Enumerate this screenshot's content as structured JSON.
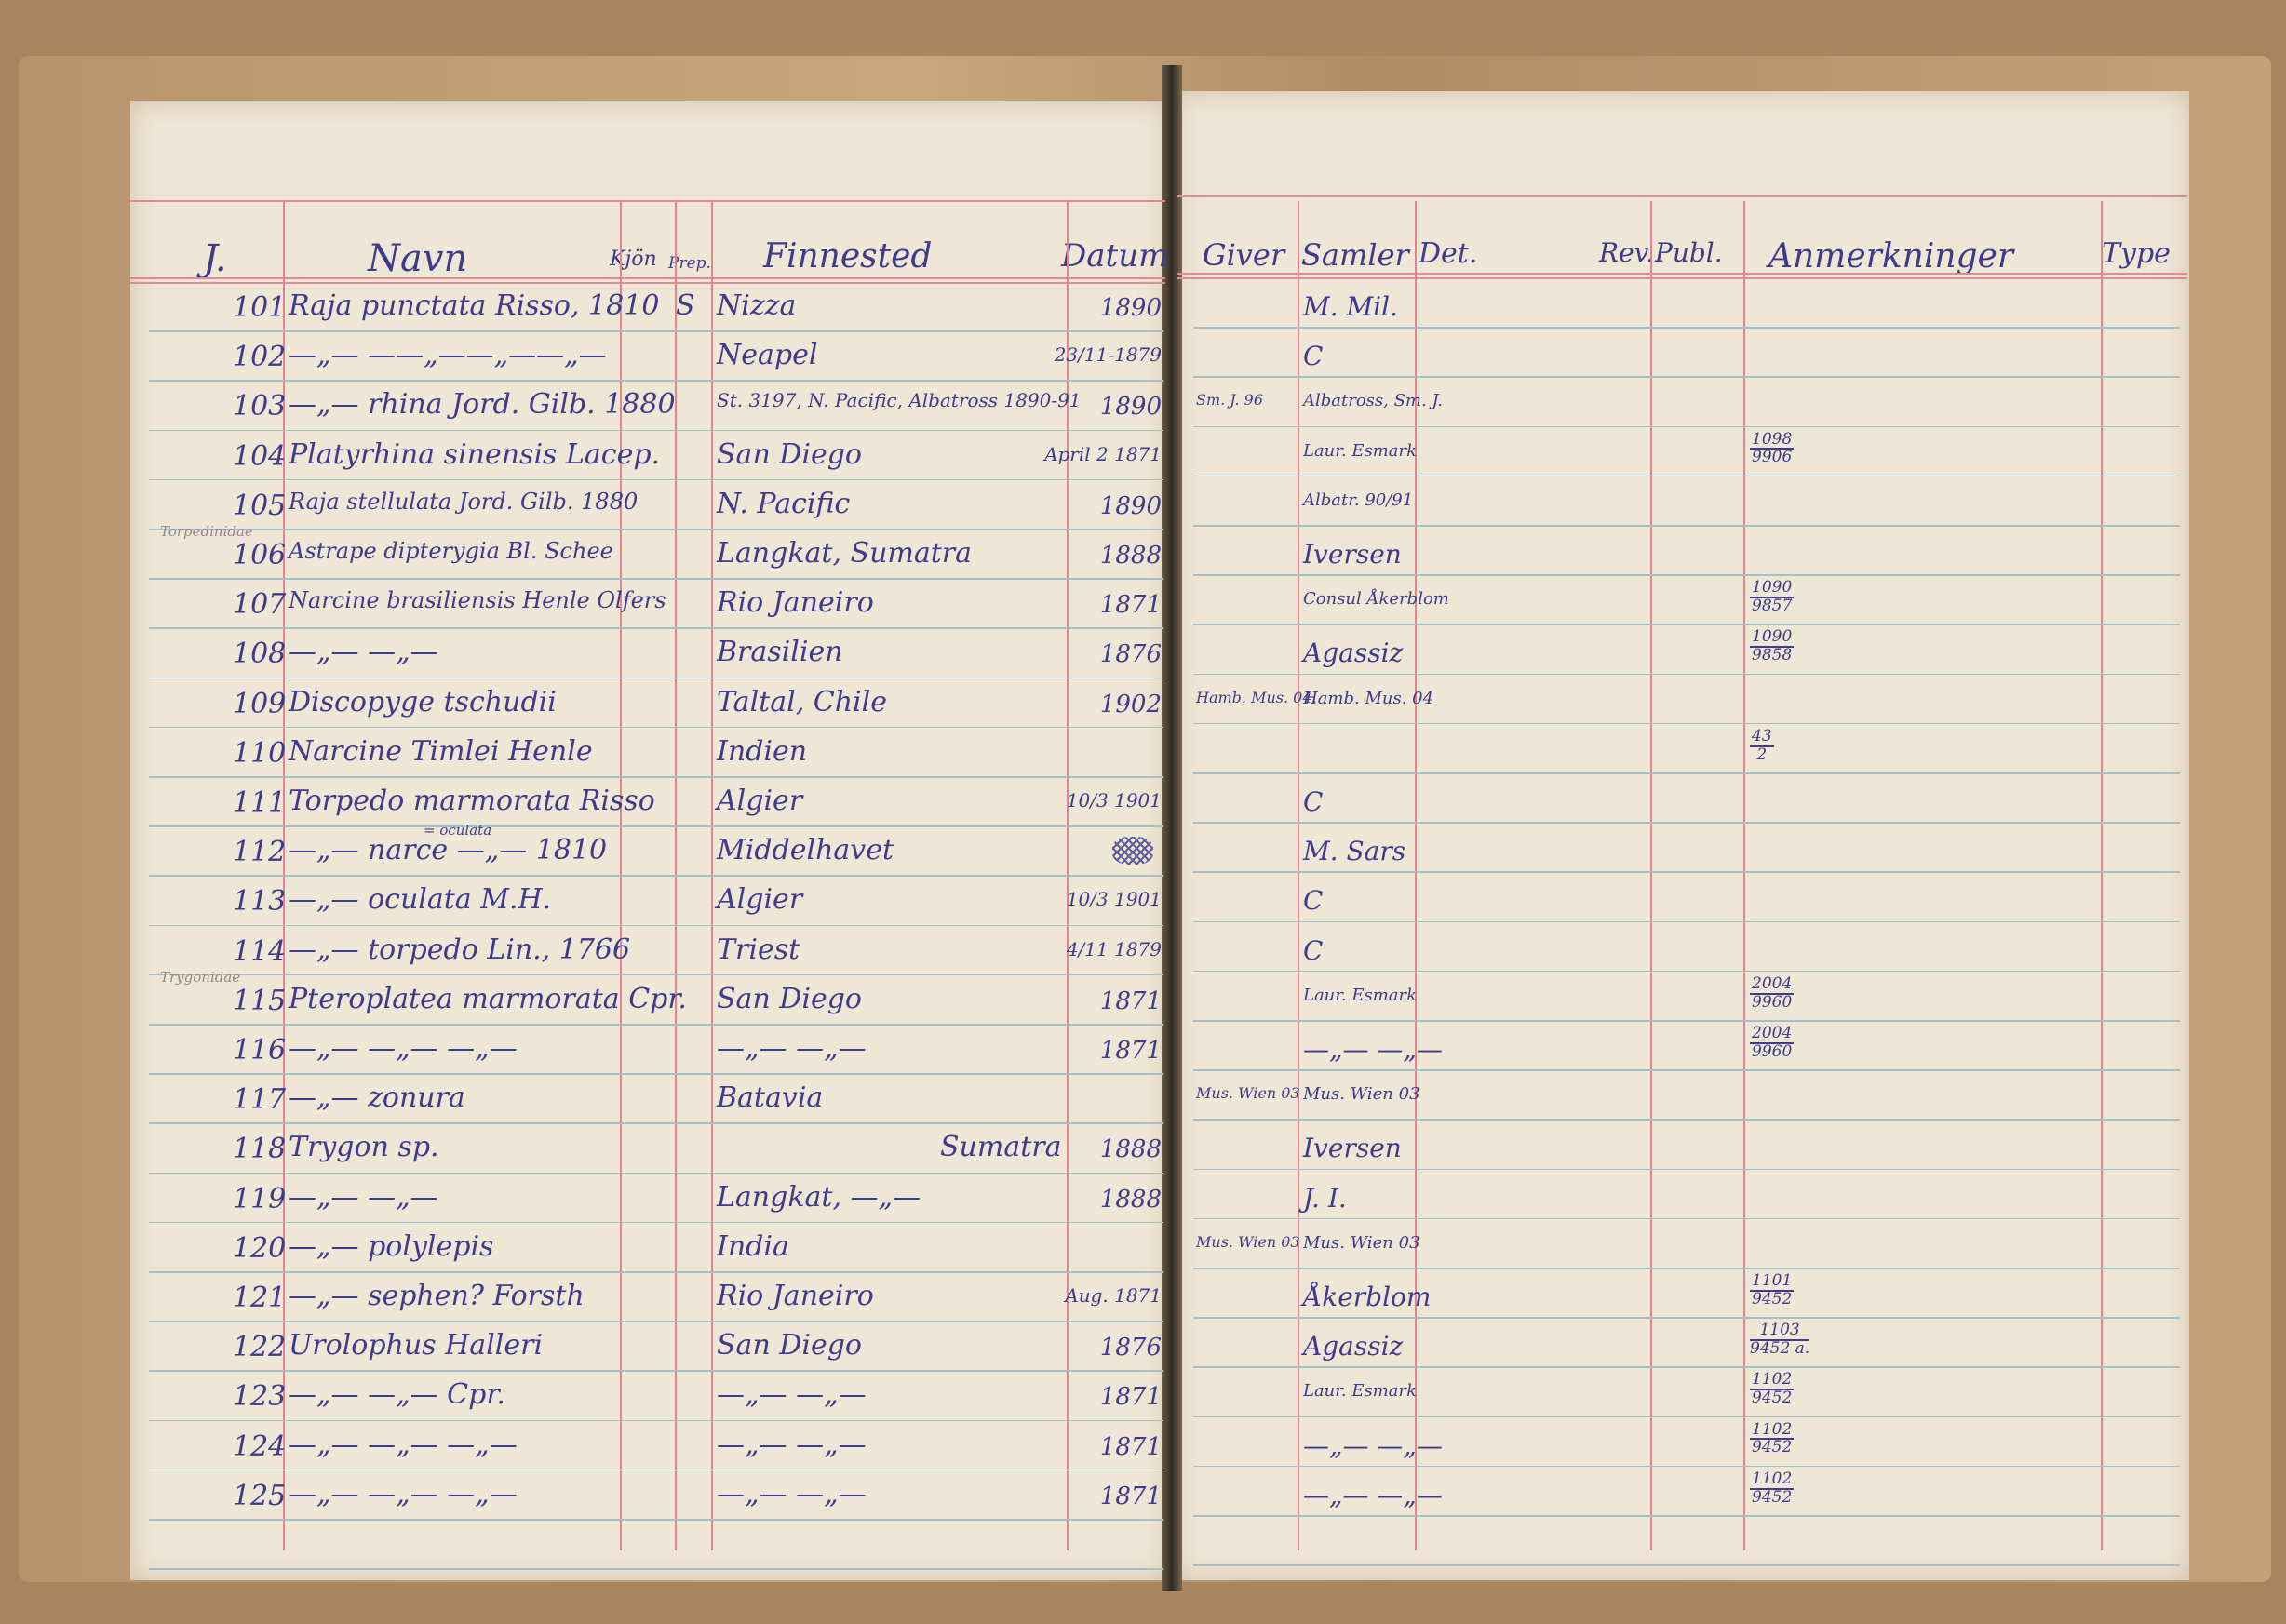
{
  "left_headers": {
    "nr": "J.",
    "navn": "Navn",
    "kjon": "Kjön",
    "prep": "Prep.",
    "finnested": "Finnested",
    "datum": "Datum"
  },
  "right_headers": {
    "giver": "Giver",
    "samler": "Samler",
    "det": "Det.",
    "rev": "Rev.",
    "publ": "Publ.",
    "anm": "Anmerkninger",
    "type": "Type"
  },
  "margin_notes": [
    {
      "text": "Torpedinidae",
      "before_row": "106"
    },
    {
      "text": "Trygonidae",
      "before_row": "115"
    }
  ],
  "rows": [
    {
      "nr": "101",
      "navn": "Raja punctata Risso, 1810",
      "kjon": "S",
      "finnested": "Nizza",
      "datum": "1890",
      "giver": "",
      "samler": "M. Mil.",
      "anm_num": "",
      "anm_den": ""
    },
    {
      "nr": "102",
      "navn": "—„— ——„——„——„—",
      "kjon": "",
      "finnested": "Neapel",
      "datum": "23/11-1879",
      "giver": "",
      "samler": "C",
      "anm_num": "",
      "anm_den": ""
    },
    {
      "nr": "103",
      "navn": "—„— rhina Jord. Gilb. 1880",
      "kjon": "",
      "finnested": "St. 3197, N. Pacific, Albatross 1890-91",
      "datum": "1890",
      "giver": "Sm. J. 96",
      "samler": "Albatross, Sm. J.",
      "anm_num": "",
      "anm_den": ""
    },
    {
      "nr": "104",
      "navn": "Platyrhina sinensis Lacep.",
      "kjon": "",
      "finnested": "San Diego",
      "datum": "April 2 1871",
      "giver": "",
      "samler": "Laur. Esmark",
      "anm_num": "1098",
      "anm_den": "9906"
    },
    {
      "nr": "105",
      "navn": "Raja stellulata Jord. Gilb. 1880",
      "kjon": "",
      "finnested": "N. Pacific",
      "datum": "1890",
      "giver": "",
      "samler": "Albatr. 90/91",
      "anm_num": "",
      "anm_den": ""
    },
    {
      "nr": "106",
      "navn": "Astrape dipterygia Bl. Schee",
      "kjon": "",
      "finnested": "Langkat, Sumatra",
      "datum": "1888",
      "giver": "",
      "samler": "Iversen",
      "anm_num": "",
      "anm_den": ""
    },
    {
      "nr": "107",
      "navn": "Narcine brasiliensis Henle Olfers",
      "kjon": "",
      "finnested": "Rio Janeiro",
      "datum": "1871",
      "giver": "",
      "samler": "Consul Åkerblom",
      "anm_num": "1090",
      "anm_den": "9857"
    },
    {
      "nr": "108",
      "navn": "—„— —„—",
      "kjon": "",
      "finnested": "Brasilien",
      "datum": "1876",
      "giver": "",
      "samler": "Agassiz",
      "anm_num": "1090",
      "anm_den": "9858"
    },
    {
      "nr": "109",
      "navn": "Discopyge tschudii",
      "kjon": "",
      "finnested": "Taltal, Chile",
      "datum": "1902",
      "giver": "Hamb. Mus. 04.",
      "samler": "Hamb. Mus. 04",
      "anm_num": "",
      "anm_den": ""
    },
    {
      "nr": "110",
      "navn": "Narcine Timlei Henle",
      "kjon": "",
      "finnested": "Indien",
      "datum": "",
      "giver": "",
      "samler": "",
      "anm_num": "43",
      "anm_den": "2"
    },
    {
      "nr": "111",
      "navn": "Torpedo marmorata Risso",
      "kjon": "",
      "finnested": "Algier",
      "datum": "10/3 1901",
      "giver": "",
      "samler": "C",
      "anm_num": "",
      "anm_den": ""
    },
    {
      "nr": "112",
      "navn": "—„— narce —„— 1810",
      "navn_note": "= oculata",
      "kjon": "",
      "finnested": "Middelhavet",
      "datum": "",
      "datum_struck": true,
      "giver": "",
      "samler": "M. Sars",
      "anm_num": "",
      "anm_den": ""
    },
    {
      "nr": "113",
      "navn": "—„— oculata M.H.",
      "kjon": "",
      "finnested": "Algier",
      "datum": "10/3 1901",
      "giver": "",
      "samler": "C",
      "anm_num": "",
      "anm_den": ""
    },
    {
      "nr": "114",
      "navn": "—„— torpedo Lin., 1766",
      "kjon": "",
      "finnested": "Triest",
      "datum": "4/11 1879",
      "giver": "",
      "samler": "C",
      "anm_num": "",
      "anm_den": ""
    },
    {
      "nr": "115",
      "navn": "Pteroplatea marmorata Cpr.",
      "kjon": "",
      "finnested": "San Diego",
      "datum": "1871",
      "giver": "",
      "samler": "Laur. Esmark",
      "anm_num": "2004",
      "anm_den": "9960"
    },
    {
      "nr": "116",
      "navn": "—„— —„— —„—",
      "kjon": "",
      "finnested": "—„— —„—",
      "datum": "1871",
      "giver": "",
      "samler": "—„— —„—",
      "anm_num": "2004",
      "anm_den": "9960"
    },
    {
      "nr": "117",
      "navn": "—„— zonura",
      "kjon": "",
      "finnested": "Batavia",
      "datum": "",
      "giver": "Mus. Wien 03",
      "samler": "Mus. Wien 03",
      "anm_num": "",
      "anm_den": ""
    },
    {
      "nr": "118",
      "navn": "Trygon sp.",
      "kjon": "",
      "finnested": "Sumatra",
      "finnested_indent": true,
      "datum": "1888",
      "giver": "",
      "samler": "Iversen",
      "anm_num": "",
      "anm_den": ""
    },
    {
      "nr": "119",
      "navn": "—„— —„—",
      "kjon": "",
      "finnested": "Langkat, —„—",
      "datum": "1888",
      "giver": "",
      "samler": "J. I.",
      "anm_num": "",
      "anm_den": ""
    },
    {
      "nr": "120",
      "navn": "—„— polylepis",
      "kjon": "",
      "finnested": "India",
      "datum": "",
      "giver": "Mus. Wien 03",
      "samler": "Mus. Wien 03",
      "anm_num": "",
      "anm_den": ""
    },
    {
      "nr": "121",
      "navn": "—„— sephen? Forsth",
      "kjon": "",
      "finnested": "Rio Janeiro",
      "datum": "Aug. 1871",
      "giver": "",
      "samler": "Åkerblom",
      "anm_num": "1101",
      "anm_den": "9452"
    },
    {
      "nr": "122",
      "navn": "Urolophus Halleri",
      "kjon": "",
      "finnested": "San Diego",
      "datum": "1876",
      "giver": "",
      "samler": "Agassiz",
      "anm_num": "1103",
      "anm_den": "9452 a."
    },
    {
      "nr": "123",
      "navn": "—„— —„— Cpr.",
      "kjon": "",
      "finnested": "—„— —„—",
      "datum": "1871",
      "giver": "",
      "samler": "Laur. Esmark",
      "anm_num": "1102",
      "anm_den": "9452"
    },
    {
      "nr": "124",
      "navn": "—„— —„— —„—",
      "kjon": "",
      "finnested": "—„— —„—",
      "datum": "1871",
      "giver": "",
      "samler": "—„— —„—",
      "anm_num": "1102",
      "anm_den": "9452"
    },
    {
      "nr": "125",
      "navn": "—„— —„— —„—",
      "kjon": "",
      "finnested": "—„— —„—",
      "datum": "1871",
      "giver": "",
      "samler": "—„— —„—",
      "anm_num": "1102",
      "anm_den": "9452"
    }
  ],
  "colors": {
    "ink": "#3e3a8c",
    "paper": "#efe7d6",
    "red_rule": "#e08a95",
    "blue_rule": "#a7c0c8",
    "cover": "#b8946c"
  }
}
